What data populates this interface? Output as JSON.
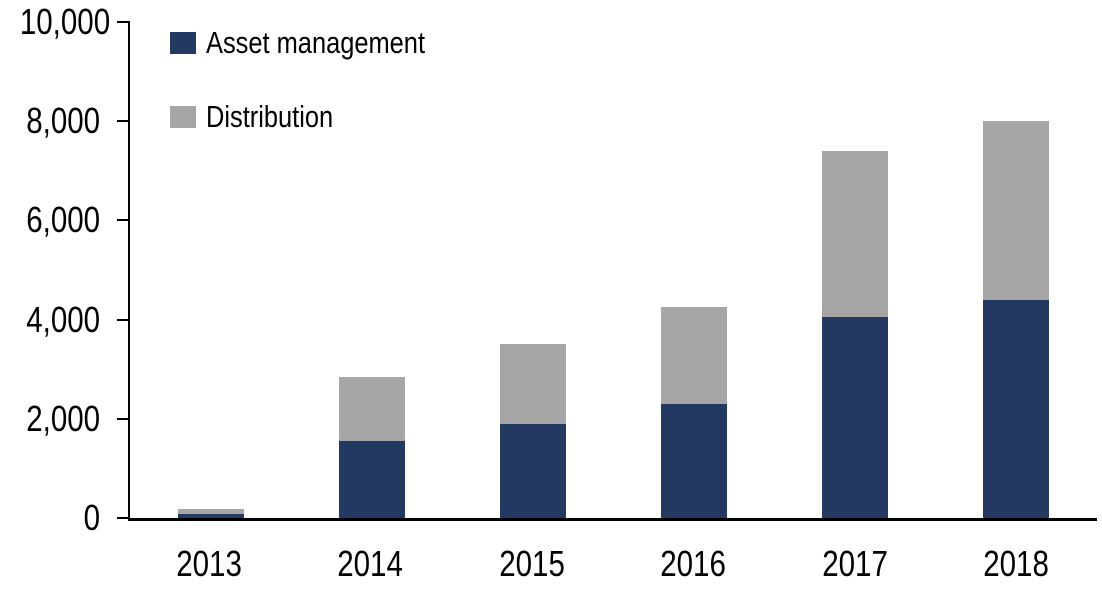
{
  "chart_data": {
    "type": "bar",
    "stacked": true,
    "title": "",
    "xlabel": "",
    "ylabel": "",
    "categories": [
      "2013",
      "2014",
      "2015",
      "2016",
      "2017",
      "2018"
    ],
    "series": [
      {
        "name": "Asset management",
        "color": "#233962",
        "values": [
          75,
          1550,
          1900,
          2300,
          4050,
          4400
        ]
      },
      {
        "name": "Distribution",
        "color": "#A6A6A6",
        "values": [
          100,
          1300,
          1600,
          1950,
          3350,
          3600
        ]
      }
    ],
    "stack_totals": [
      175,
      2850,
      3500,
      4250,
      7400,
      8000
    ],
    "ylim": [
      0,
      10000
    ],
    "yticks": [
      0,
      2000,
      4000,
      6000,
      8000,
      10000
    ],
    "ytick_labels": [
      "0",
      "2,000",
      "4,000",
      "6,000",
      "8,000",
      "10,000"
    ],
    "grid": false,
    "legend_position": "top-left-inside",
    "axis_color": "#000000",
    "background_color": "#FFFFFF"
  }
}
